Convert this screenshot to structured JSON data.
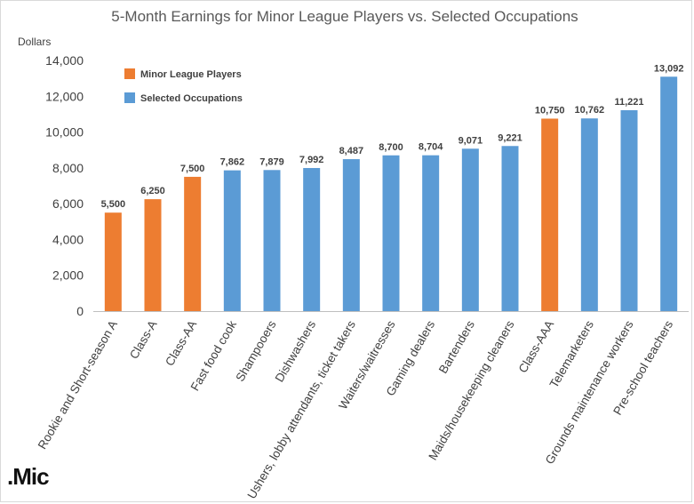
{
  "chart_data": {
    "type": "bar",
    "title": "5-Month Earnings for Minor League Players vs. Selected Occupations",
    "ylabel": "Dollars",
    "xlabel": "",
    "ylim": [
      0,
      14000
    ],
    "yticks": [
      0,
      2000,
      4000,
      6000,
      8000,
      10000,
      12000,
      14000
    ],
    "ytick_labels": [
      "0",
      "2,000",
      "4,000",
      "6,000",
      "8,000",
      "10,000",
      "12,000",
      "14,000"
    ],
    "grid": false,
    "legend_placement": "top-left",
    "legend": [
      {
        "name": "Minor League Players",
        "color": "#ED7D31"
      },
      {
        "name": "Selected Occupations",
        "color": "#5B9BD5"
      }
    ],
    "categories": [
      "Rookie and Short-season A",
      "Class-A",
      "Class-AA",
      "Fast food cook",
      "Shampooers",
      "Dishwashers",
      "Ushers, lobby attendants, ticket takers",
      "Waiters/waitresses",
      "Gaming dealers",
      "Bartenders",
      "Maids/housekeeping cleaners",
      "Class-AAA",
      "Telemarketers",
      "Grounds maintenance workers",
      "Pre-school teachers"
    ],
    "values": [
      5500,
      6250,
      7500,
      7862,
      7879,
      7992,
      8487,
      8700,
      8704,
      9071,
      9221,
      10750,
      10762,
      11221,
      13092
    ],
    "value_labels": [
      "5,500",
      "6,250",
      "7,500",
      "7,862",
      "7,879",
      "7,992",
      "8,487",
      "8,700",
      "8,704",
      "9,071",
      "9,221",
      "10,750",
      "10,762",
      "11,221",
      "13,092"
    ],
    "groups": [
      0,
      0,
      0,
      1,
      1,
      1,
      1,
      1,
      1,
      1,
      1,
      0,
      1,
      1,
      1
    ]
  },
  "logo_text": ".Mic"
}
